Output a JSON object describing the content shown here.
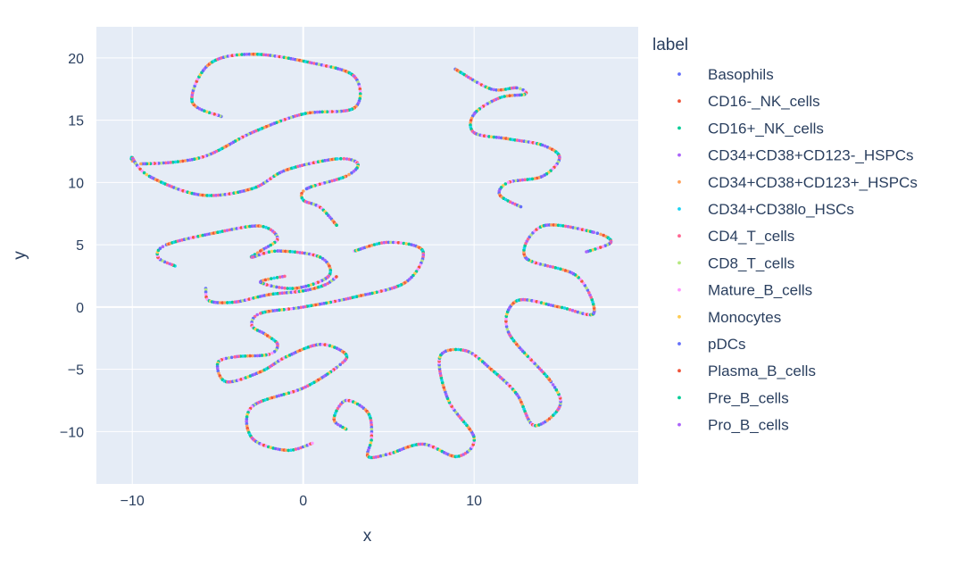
{
  "chart_data": {
    "type": "scatter",
    "xlabel": "x",
    "ylabel": "y",
    "xlim": [
      -12.1,
      19.6
    ],
    "ylim": [
      -14.2,
      22.5
    ],
    "x_ticks": [
      -10,
      0,
      10
    ],
    "y_ticks": [
      -10,
      -5,
      0,
      5,
      10,
      15,
      20
    ],
    "x_tick_labels": [
      "−10",
      "0",
      "10"
    ],
    "y_tick_labels": [
      "−10",
      "−5",
      "0",
      "5",
      "10",
      "15",
      "20"
    ],
    "grid": true,
    "legend_title": "label",
    "legend_position": "right",
    "series": [
      {
        "name": "Basophils",
        "color": "#636efa"
      },
      {
        "name": "CD16-_NK_cells",
        "color": "#ef553b"
      },
      {
        "name": "CD16+_NK_cells",
        "color": "#00cc96"
      },
      {
        "name": "CD34+CD38+CD123-_HSPCs",
        "color": "#ab63fa"
      },
      {
        "name": "CD34+CD38+CD123+_HSPCs",
        "color": "#ffa15a"
      },
      {
        "name": "CD34+CD38lo_HSCs",
        "color": "#19d3f3"
      },
      {
        "name": "CD4_T_cells",
        "color": "#ff6692"
      },
      {
        "name": "CD8_T_cells",
        "color": "#b6e880"
      },
      {
        "name": "Mature_B_cells",
        "color": "#ff97ff"
      },
      {
        "name": "Monocytes",
        "color": "#fecb52"
      },
      {
        "name": "pDCs",
        "color": "#636efa"
      },
      {
        "name": "Plasma_B_cells",
        "color": "#ef553b"
      },
      {
        "name": "Pre_B_cells",
        "color": "#00cc96"
      },
      {
        "name": "Pro_B_cells",
        "color": "#ab63fa"
      }
    ],
    "curves": [
      [
        [
          -4.8,
          15.3
        ],
        [
          -6.5,
          16.5
        ],
        [
          -5.5,
          19.5
        ],
        [
          -3.0,
          20.3
        ],
        [
          0.5,
          19.6
        ],
        [
          3.0,
          18.5
        ],
        [
          3.0,
          16.0
        ],
        [
          0.0,
          15.5
        ],
        [
          -3.0,
          14.0
        ],
        [
          -6.0,
          12.0
        ],
        [
          -9.5,
          11.5
        ],
        [
          -10.0,
          12.0
        ],
        [
          -9.0,
          10.5
        ],
        [
          -6.0,
          9.0
        ],
        [
          -3.0,
          9.5
        ],
        [
          -1.0,
          11.0
        ],
        [
          2.0,
          11.9
        ],
        [
          3.2,
          11.5
        ],
        [
          2.5,
          10.5
        ],
        [
          0.2,
          9.5
        ],
        [
          0.0,
          8.6
        ],
        [
          1.0,
          8.0
        ],
        [
          2.0,
          6.5
        ]
      ],
      [
        [
          -7.5,
          3.3
        ],
        [
          -8.5,
          4.0
        ],
        [
          -8.0,
          5.0
        ],
        [
          -5.0,
          6.0
        ],
        [
          -2.5,
          6.5
        ],
        [
          -1.5,
          5.5
        ],
        [
          -2.5,
          4.5
        ],
        [
          -3.0,
          4.0
        ],
        [
          -1.5,
          4.5
        ],
        [
          1.0,
          4.0
        ],
        [
          1.5,
          2.5
        ],
        [
          -0.5,
          1.5
        ],
        [
          -2.5,
          2.0
        ],
        [
          -1.0,
          2.5
        ]
      ],
      [
        [
          -5.7,
          1.5
        ],
        [
          -5.5,
          0.5
        ],
        [
          -4.0,
          0.4
        ],
        [
          -2.0,
          1.0
        ],
        [
          0.0,
          1.3
        ],
        [
          1.3,
          1.8
        ],
        [
          2.0,
          2.5
        ]
      ],
      [
        [
          3.0,
          4.5
        ],
        [
          5.0,
          5.2
        ],
        [
          7.0,
          4.5
        ],
        [
          6.0,
          2.0
        ],
        [
          3.0,
          0.8
        ],
        [
          0.0,
          0.0
        ],
        [
          -2.5,
          -0.5
        ],
        [
          -3.0,
          -1.5
        ],
        [
          -2.2,
          -2.2
        ],
        [
          -1.5,
          -3.0
        ],
        [
          -2.0,
          -3.8
        ],
        [
          -4.0,
          -4.0
        ],
        [
          -5.0,
          -4.5
        ],
        [
          -4.5,
          -6.0
        ],
        [
          -2.5,
          -5.2
        ],
        [
          -1.0,
          -4.0
        ],
        [
          1.0,
          -3.0
        ],
        [
          2.5,
          -3.8
        ],
        [
          2.0,
          -4.8
        ],
        [
          0.0,
          -6.5
        ],
        [
          -3.0,
          -8.0
        ],
        [
          -3.0,
          -10.5
        ],
        [
          -1.0,
          -11.5
        ],
        [
          0.6,
          -10.9
        ]
      ],
      [
        [
          2.5,
          -9.8
        ],
        [
          1.8,
          -9.0
        ],
        [
          2.5,
          -7.5
        ],
        [
          3.8,
          -8.5
        ],
        [
          4.0,
          -10.5
        ],
        [
          3.8,
          -12.0
        ],
        [
          5.0,
          -11.8
        ],
        [
          7.0,
          -11.0
        ],
        [
          9.0,
          -12.0
        ],
        [
          10.0,
          -10.5
        ],
        [
          8.5,
          -7.5
        ],
        [
          8.0,
          -4.0
        ],
        [
          9.5,
          -3.5
        ],
        [
          11.0,
          -5.0
        ],
        [
          12.5,
          -7.0
        ],
        [
          13.5,
          -9.5
        ],
        [
          15.0,
          -8.0
        ],
        [
          14.5,
          -6.0
        ],
        [
          12.0,
          -2.0
        ],
        [
          12.5,
          0.5
        ],
        [
          15.0,
          0.0
        ],
        [
          17.0,
          -0.5
        ],
        [
          16.0,
          2.5
        ],
        [
          13.0,
          4.0
        ],
        [
          14.0,
          6.5
        ],
        [
          17.0,
          6.0
        ],
        [
          18.0,
          5.2
        ],
        [
          16.5,
          4.4
        ]
      ],
      [
        [
          8.9,
          19.1
        ],
        [
          11.0,
          17.5
        ],
        [
          12.5,
          17.6
        ],
        [
          13.0,
          17.1
        ],
        [
          11.5,
          16.8
        ],
        [
          10.0,
          15.5
        ],
        [
          10.0,
          14.0
        ],
        [
          12.0,
          13.5
        ],
        [
          14.0,
          13.0
        ],
        [
          15.0,
          12.0
        ],
        [
          14.0,
          10.5
        ],
        [
          12.0,
          10.0
        ],
        [
          11.5,
          9.0
        ],
        [
          12.8,
          8.0
        ]
      ]
    ]
  }
}
